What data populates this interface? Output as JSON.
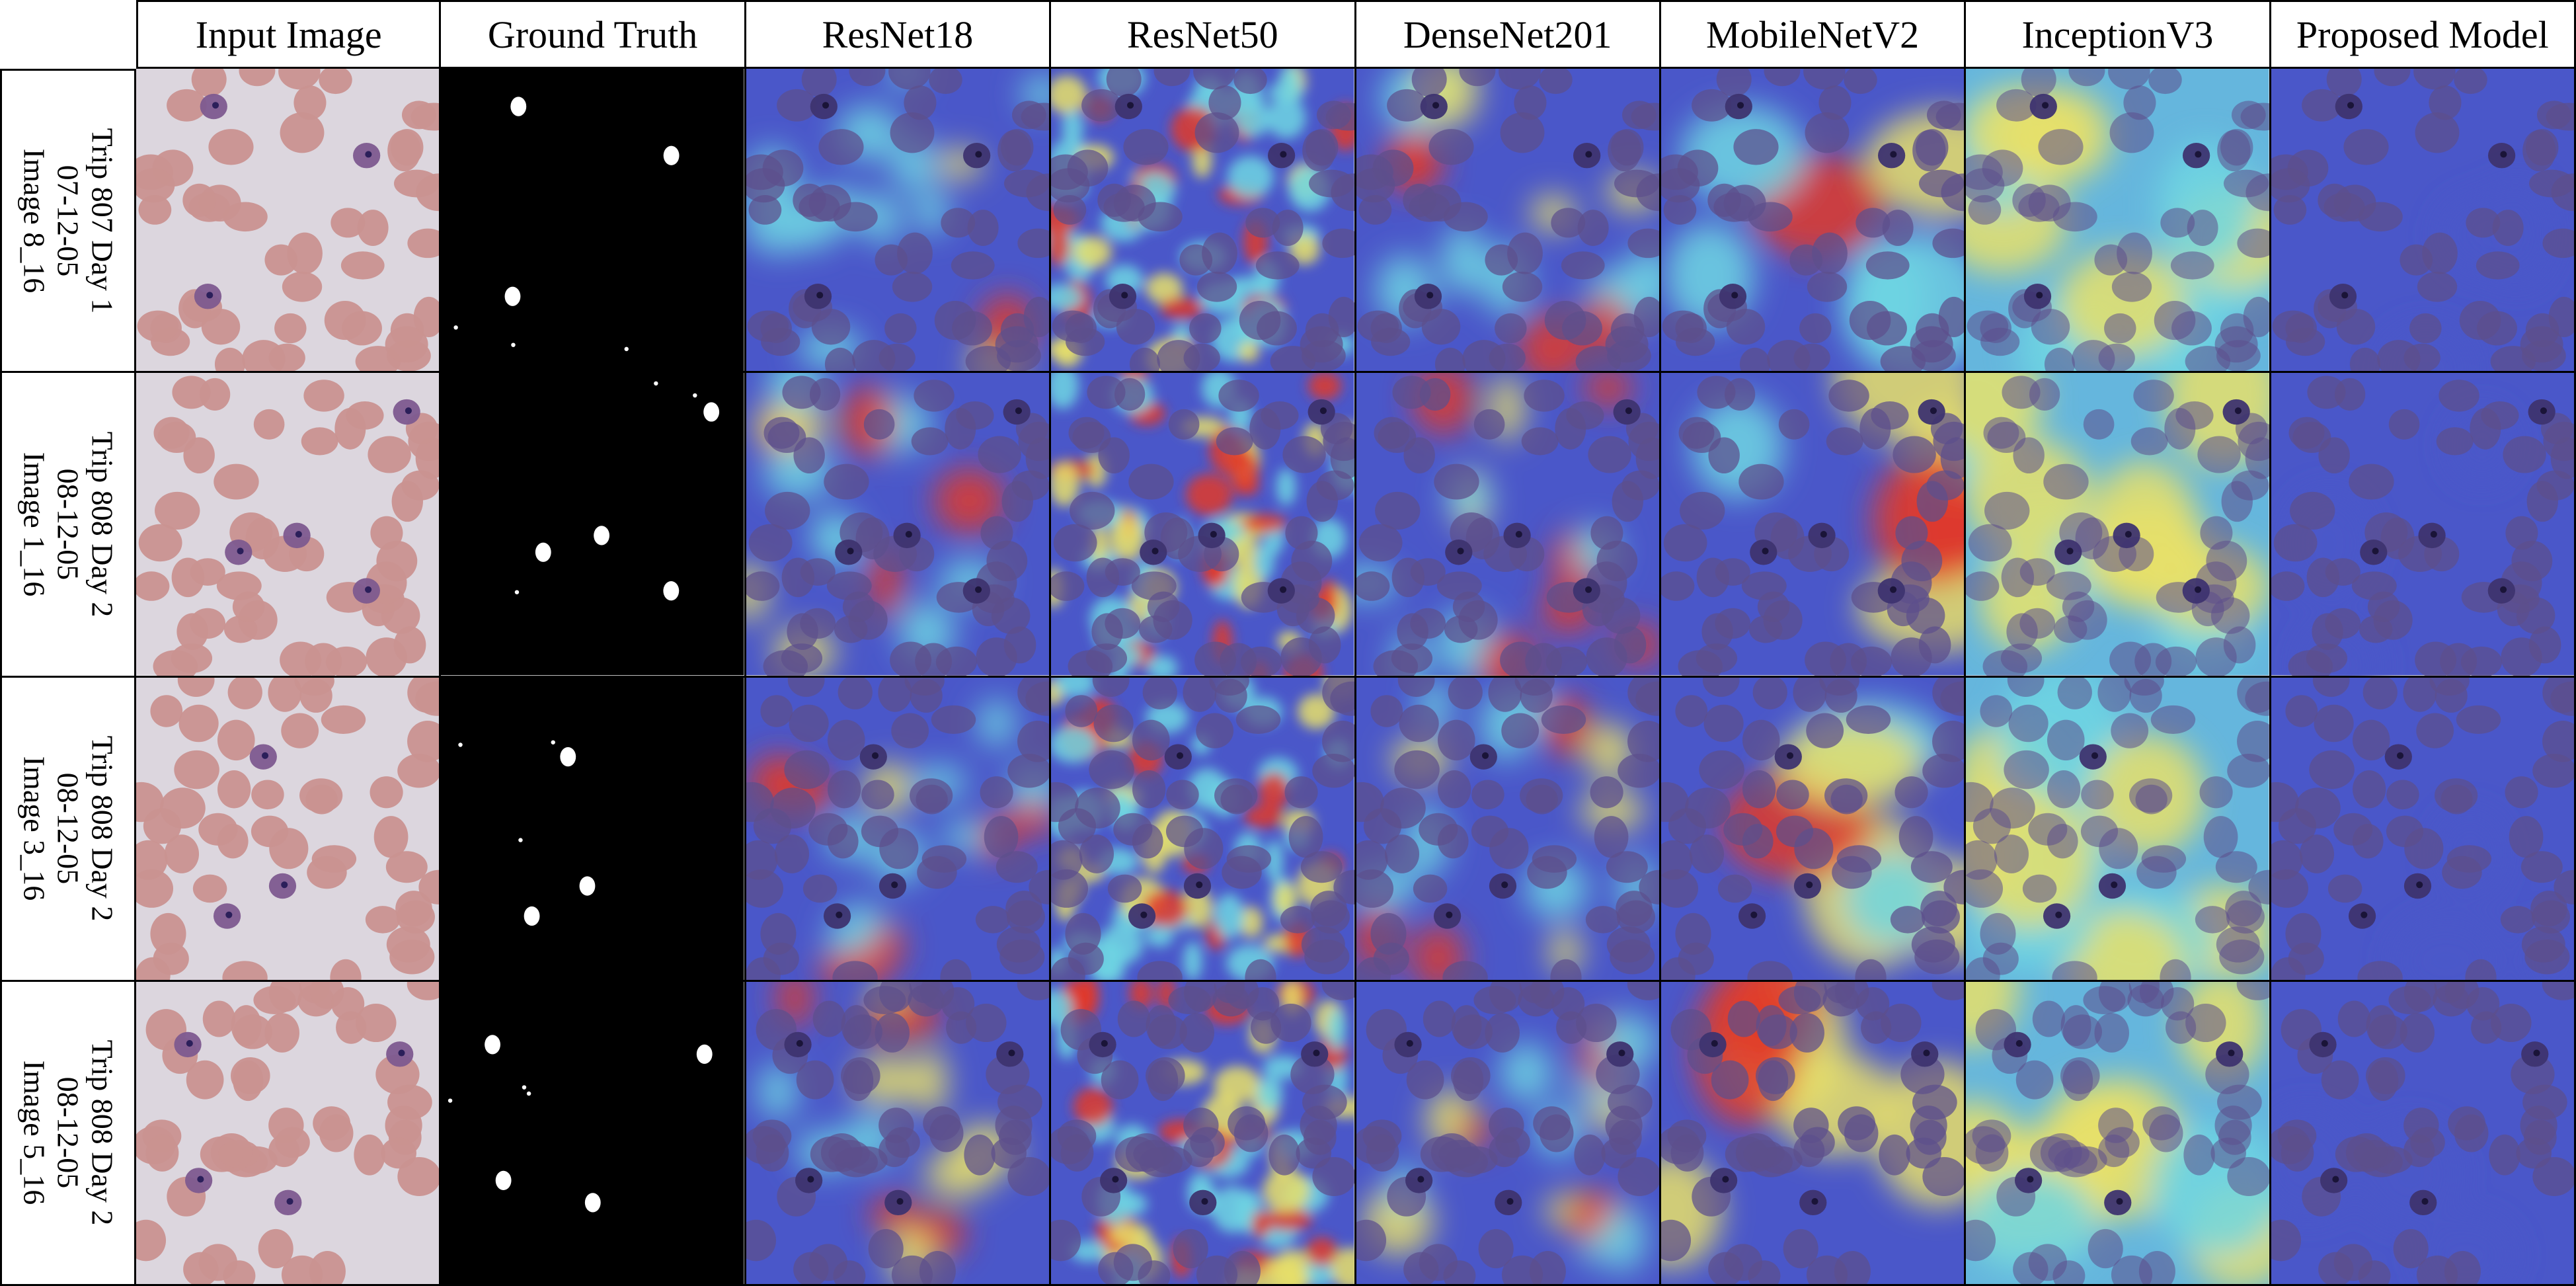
{
  "columns": [
    {
      "label": "Input Image",
      "kind": "input"
    },
    {
      "label": "Ground Truth",
      "kind": "mask"
    },
    {
      "label": "ResNet18",
      "kind": "heat-blob"
    },
    {
      "label": "ResNet50",
      "kind": "heat-noisy"
    },
    {
      "label": "DenseNet201",
      "kind": "heat-blob"
    },
    {
      "label": "MobileNetV2",
      "kind": "heat-smooth"
    },
    {
      "label": "InceptionV3",
      "kind": "heat-light"
    },
    {
      "label": "Proposed Model",
      "kind": "heat-flat"
    }
  ],
  "rows": [
    {
      "line1": "Trip 807 Day 1",
      "line2": "07-12-05",
      "line3": "Image 8_16"
    },
    {
      "line1": "Trip 808 Day 2",
      "line2": "08-12-05",
      "line3": "Image 1_16"
    },
    {
      "line1": "Trip 808 Day 2",
      "line2": "08-12-05",
      "line3": "Image 3_16"
    },
    {
      "line1": "Trip 808 Day 2",
      "line2": "08-12-05",
      "line3": "Image 5_16"
    }
  ],
  "colors": {
    "cell_pink": "#c99290",
    "cell_purple": "#5d4f8c",
    "background_pale": "#dcd6de",
    "heat_blue": "#4a57c9",
    "heat_cyan": "#6fd6e3",
    "heat_yellow": "#e8e16a",
    "heat_red": "#e0392a",
    "mask_white": "#ffffff",
    "mask_black": "#000000"
  }
}
